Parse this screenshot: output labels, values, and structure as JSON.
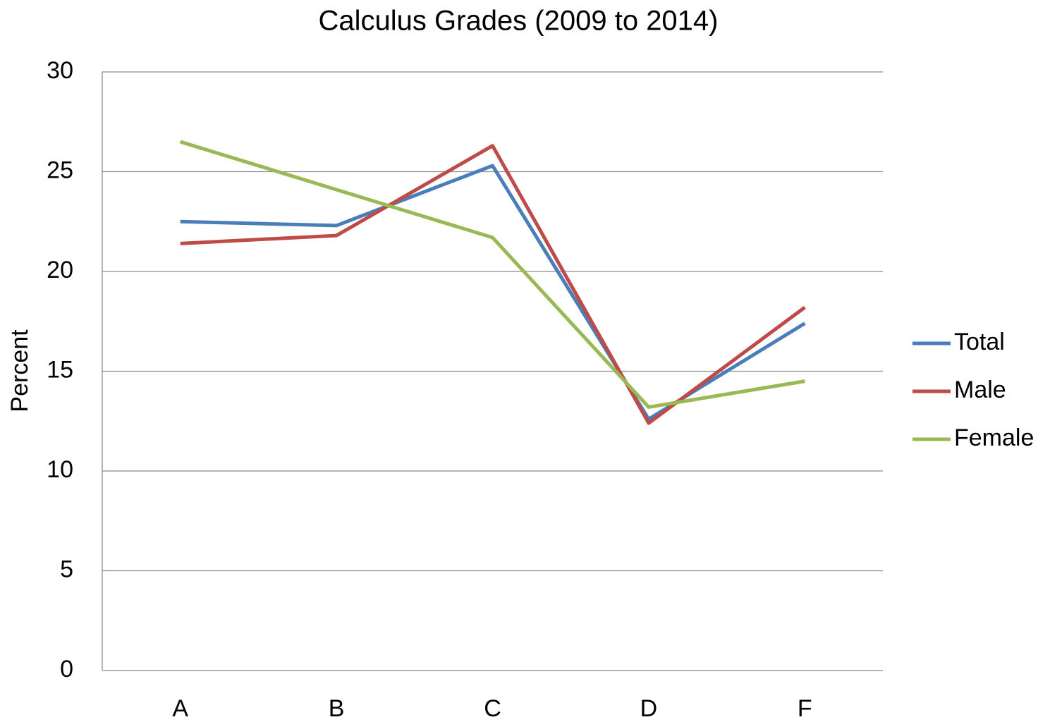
{
  "chart_data": {
    "type": "line",
    "title": "Calculus Grades (2009 to 2014)",
    "y_label": "Percent",
    "categories": [
      "A",
      "B",
      "C",
      "D",
      "F"
    ],
    "series": [
      {
        "name": "Total",
        "color": "#4a7ebb",
        "values": [
          22.5,
          22.3,
          25.3,
          12.6,
          17.4
        ]
      },
      {
        "name": "Male",
        "color": "#be4b48",
        "values": [
          21.4,
          21.8,
          26.3,
          12.4,
          18.2
        ]
      },
      {
        "name": "Female",
        "color": "#98b954",
        "values": [
          26.5,
          24.1,
          21.7,
          13.2,
          14.5
        ]
      }
    ],
    "ylim": [
      0,
      30
    ],
    "yticks": [
      0,
      5,
      10,
      15,
      20,
      25,
      30
    ],
    "grid": true,
    "legend": "right"
  }
}
